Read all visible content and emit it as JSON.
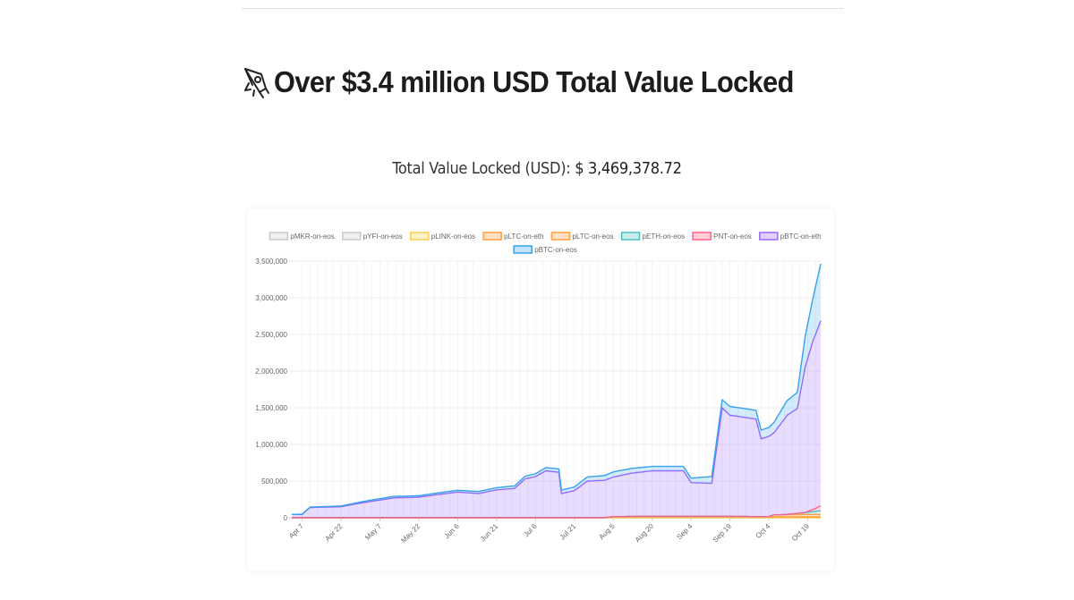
{
  "page": {
    "heading": "Over $3.4 million USD Total Value Locked",
    "heading_icon": "rocket-icon",
    "tvl_label": "Total Value Locked (USD):",
    "tvl_value": "$ 3,469,378.72"
  },
  "chart_data": {
    "type": "area",
    "stacked": true,
    "title": "",
    "xlabel": "",
    "ylabel": "",
    "ylim": [
      0,
      3500000
    ],
    "yticks": [
      0,
      500000,
      1000000,
      1500000,
      2000000,
      2500000,
      3000000,
      3500000
    ],
    "ytick_labels": [
      "0",
      "500,000",
      "1,000,000",
      "1,500,000",
      "2,000,000",
      "2,500,000",
      "3,000,000",
      "3,500,000"
    ],
    "xtick_labels": [
      "Apr 7",
      "Apr 22",
      "May 7",
      "May 22",
      "Jun 6",
      "Jun 21",
      "Jul 6",
      "Jul 21",
      "Aug 5",
      "Aug 20",
      "Sep 4",
      "Sep 19",
      "Oct 4",
      "Oct 19"
    ],
    "xlim": [
      "2020-04-03",
      "2020-10-24"
    ],
    "grid": true,
    "legend_position": "top",
    "series": [
      {
        "name": "pMKR-on-eos",
        "color": "#c9cbcf",
        "points": [
          [
            "2020-04-03",
            0
          ],
          [
            "2020-10-24",
            0
          ]
        ]
      },
      {
        "name": "pYFI-on-eos",
        "color": "#c9cbcf",
        "points": [
          [
            "2020-04-03",
            0
          ],
          [
            "2020-10-24",
            0
          ]
        ]
      },
      {
        "name": "pLINK-on-eos",
        "color": "#ffcd56",
        "points": [
          [
            "2020-04-03",
            0
          ],
          [
            "2020-10-24",
            0
          ]
        ]
      },
      {
        "name": "pLTC-on-eth",
        "color": "#ff9f40",
        "points": [
          [
            "2020-04-03",
            0
          ],
          [
            "2020-08-01",
            0
          ],
          [
            "2020-08-05",
            15000
          ],
          [
            "2020-08-20",
            20000
          ],
          [
            "2020-09-04",
            20000
          ],
          [
            "2020-09-19",
            18000
          ],
          [
            "2020-10-04",
            15000
          ],
          [
            "2020-10-24",
            15000
          ]
        ]
      },
      {
        "name": "pLTC-on-eos",
        "color": "#ff9f40",
        "points": [
          [
            "2020-04-03",
            0
          ],
          [
            "2020-10-04",
            0
          ],
          [
            "2020-10-06",
            25000
          ],
          [
            "2020-10-19",
            30000
          ],
          [
            "2020-10-24",
            30000
          ]
        ]
      },
      {
        "name": "pETH-on-eos",
        "color": "#4bc0c0",
        "points": [
          [
            "2020-04-03",
            0
          ],
          [
            "2020-10-10",
            0
          ],
          [
            "2020-10-19",
            30000
          ],
          [
            "2020-10-24",
            50000
          ]
        ]
      },
      {
        "name": "PNT-on-eos",
        "color": "#ff6384",
        "points": [
          [
            "2020-04-03",
            0
          ],
          [
            "2020-10-18",
            0
          ],
          [
            "2020-10-22",
            40000
          ],
          [
            "2020-10-24",
            70000
          ]
        ]
      },
      {
        "name": "pBTC-on-eth",
        "color": "#9966ff",
        "points": [
          [
            "2020-04-03",
            45000
          ],
          [
            "2020-04-07",
            45000
          ],
          [
            "2020-04-10",
            140000
          ],
          [
            "2020-04-22",
            150000
          ],
          [
            "2020-04-28",
            190000
          ],
          [
            "2020-05-03",
            220000
          ],
          [
            "2020-05-07",
            240000
          ],
          [
            "2020-05-12",
            270000
          ],
          [
            "2020-05-22",
            280000
          ],
          [
            "2020-05-28",
            310000
          ],
          [
            "2020-06-06",
            350000
          ],
          [
            "2020-06-14",
            330000
          ],
          [
            "2020-06-21",
            380000
          ],
          [
            "2020-06-28",
            400000
          ],
          [
            "2020-07-02",
            530000
          ],
          [
            "2020-07-06",
            560000
          ],
          [
            "2020-07-10",
            640000
          ],
          [
            "2020-07-15",
            620000
          ],
          [
            "2020-07-16",
            330000
          ],
          [
            "2020-07-21",
            370000
          ],
          [
            "2020-07-26",
            500000
          ],
          [
            "2020-08-02",
            510000
          ],
          [
            "2020-08-05",
            540000
          ],
          [
            "2020-08-12",
            590000
          ],
          [
            "2020-08-20",
            620000
          ],
          [
            "2020-09-01",
            620000
          ],
          [
            "2020-09-04",
            460000
          ],
          [
            "2020-09-12",
            450000
          ],
          [
            "2020-09-16",
            1480000
          ],
          [
            "2020-09-19",
            1380000
          ],
          [
            "2020-09-25",
            1350000
          ],
          [
            "2020-09-29",
            1330000
          ],
          [
            "2020-10-01",
            1060000
          ],
          [
            "2020-10-06",
            1120000
          ],
          [
            "2020-10-11",
            1350000
          ],
          [
            "2020-10-15",
            1430000
          ],
          [
            "2020-10-18",
            1980000
          ],
          [
            "2020-10-21",
            2300000
          ],
          [
            "2020-10-24",
            2520000
          ]
        ]
      },
      {
        "name": "pBTC-on-eos",
        "color": "#36a2eb",
        "points": [
          [
            "2020-04-03",
            0
          ],
          [
            "2020-04-10",
            5000
          ],
          [
            "2020-04-22",
            10000
          ],
          [
            "2020-05-07",
            20000
          ],
          [
            "2020-05-22",
            20000
          ],
          [
            "2020-06-06",
            25000
          ],
          [
            "2020-06-21",
            30000
          ],
          [
            "2020-07-06",
            40000
          ],
          [
            "2020-07-21",
            50000
          ],
          [
            "2020-08-05",
            70000
          ],
          [
            "2020-08-20",
            60000
          ],
          [
            "2020-09-04",
            60000
          ],
          [
            "2020-09-16",
            110000
          ],
          [
            "2020-09-19",
            120000
          ],
          [
            "2020-10-04",
            120000
          ],
          [
            "2020-10-11",
            200000
          ],
          [
            "2020-10-15",
            220000
          ],
          [
            "2020-10-18",
            420000
          ],
          [
            "2020-10-21",
            580000
          ],
          [
            "2020-10-24",
            780000
          ]
        ]
      }
    ]
  }
}
